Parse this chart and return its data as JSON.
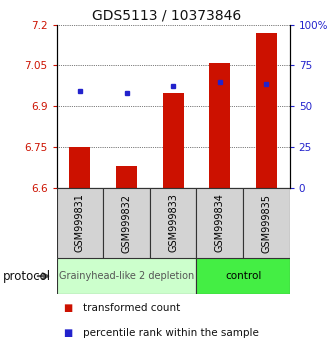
{
  "title": "GDS5113 / 10373846",
  "samples": [
    "GSM999831",
    "GSM999832",
    "GSM999833",
    "GSM999834",
    "GSM999835"
  ],
  "bar_values": [
    6.75,
    6.68,
    6.95,
    7.06,
    7.17
  ],
  "bar_bottom": 6.6,
  "percentile_values": [
    6.955,
    6.948,
    6.975,
    6.988,
    6.983
  ],
  "ylim_left": [
    6.6,
    7.2
  ],
  "ylim_right": [
    0,
    100
  ],
  "yticks_left": [
    6.6,
    6.75,
    6.9,
    7.05,
    7.2
  ],
  "yticks_right": [
    0,
    25,
    50,
    75,
    100
  ],
  "ytick_labels_left": [
    "6.6",
    "6.75",
    "6.9",
    "7.05",
    "7.2"
  ],
  "ytick_labels_right": [
    "0",
    "25",
    "50",
    "75",
    "100%"
  ],
  "bar_color": "#cc1100",
  "percentile_color": "#2222cc",
  "grid_color": "#000000",
  "background_color": "#ffffff",
  "group1_label": "Grainyhead-like 2 depletion",
  "group2_label": "control",
  "group1_color": "#ccffcc",
  "group2_color": "#44ee44",
  "group1_samples": [
    0,
    1,
    2
  ],
  "group2_samples": [
    3,
    4
  ],
  "protocol_label": "protocol",
  "legend_bar_label": "transformed count",
  "legend_pct_label": "percentile rank within the sample",
  "title_fontsize": 10,
  "tick_fontsize": 7.5,
  "sample_fontsize": 7,
  "group_fontsize": 7.5,
  "legend_fontsize": 7.5,
  "bar_width": 0.45
}
